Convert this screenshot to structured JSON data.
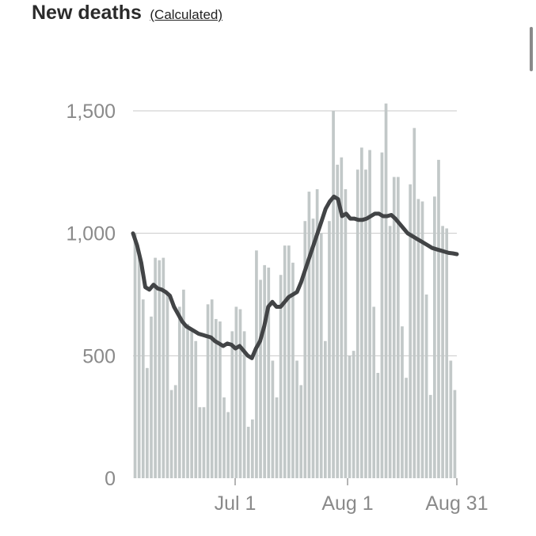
{
  "header": {
    "title": "New deaths",
    "subtitle_link": "(Calculated)"
  },
  "colors": {
    "bar": "#c2c8c8",
    "line": "#424446",
    "grid": "#c9c9c9",
    "tick_text": "#8a8a8a"
  },
  "chart_data": {
    "type": "bar",
    "title": "New deaths",
    "subtitle": "(Calculated)",
    "xlabel": "",
    "ylabel": "",
    "ylim": [
      0,
      1500
    ],
    "yticks": [
      "0",
      "500",
      "1,000",
      "1,500"
    ],
    "xticks": [
      {
        "index": 42,
        "label": "Jul 1"
      },
      {
        "index": 89,
        "label": "Aug 1"
      },
      {
        "index": 132,
        "label": "Aug 31"
      }
    ],
    "grid": true,
    "legend": "none",
    "series": [
      {
        "type": "bar",
        "values": [
          1000,
          920,
          730,
          450,
          660,
          900,
          890,
          900,
          760,
          360,
          380,
          700,
          770,
          630,
          600,
          560,
          290,
          290,
          710,
          730,
          650,
          640,
          330,
          270,
          600,
          700,
          690,
          600,
          210,
          240,
          930,
          810,
          870,
          860,
          480,
          330,
          830,
          950,
          950,
          880,
          480,
          380,
          1050,
          1170,
          1060,
          1180,
          1000,
          560,
          1050,
          1500,
          1280,
          1310,
          1180,
          500,
          520,
          1260,
          1350,
          1260,
          1340,
          700,
          430,
          1330,
          1530,
          1030,
          1230,
          1230,
          620,
          410,
          1200,
          1430,
          1140,
          1130,
          750,
          340,
          1150,
          1300,
          1030,
          1020,
          480,
          360
        ]
      },
      {
        "type": "line",
        "name": "",
        "values": [
          1000,
          950,
          880,
          780,
          770,
          790,
          775,
          770,
          760,
          745,
          700,
          670,
          640,
          620,
          610,
          600,
          590,
          585,
          580,
          575,
          560,
          550,
          540,
          550,
          545,
          530,
          540,
          520,
          500,
          490,
          530,
          560,
          620,
          700,
          720,
          700,
          700,
          720,
          740,
          750,
          760,
          800,
          850,
          900,
          950,
          1000,
          1050,
          1100,
          1130,
          1150,
          1140,
          1070,
          1080,
          1060,
          1060,
          1055,
          1055,
          1060,
          1070,
          1080,
          1080,
          1070,
          1070,
          1075,
          1060,
          1040,
          1020,
          1000,
          990,
          980,
          970,
          960,
          950,
          940,
          935,
          930,
          925,
          920,
          918,
          915
        ]
      }
    ]
  }
}
